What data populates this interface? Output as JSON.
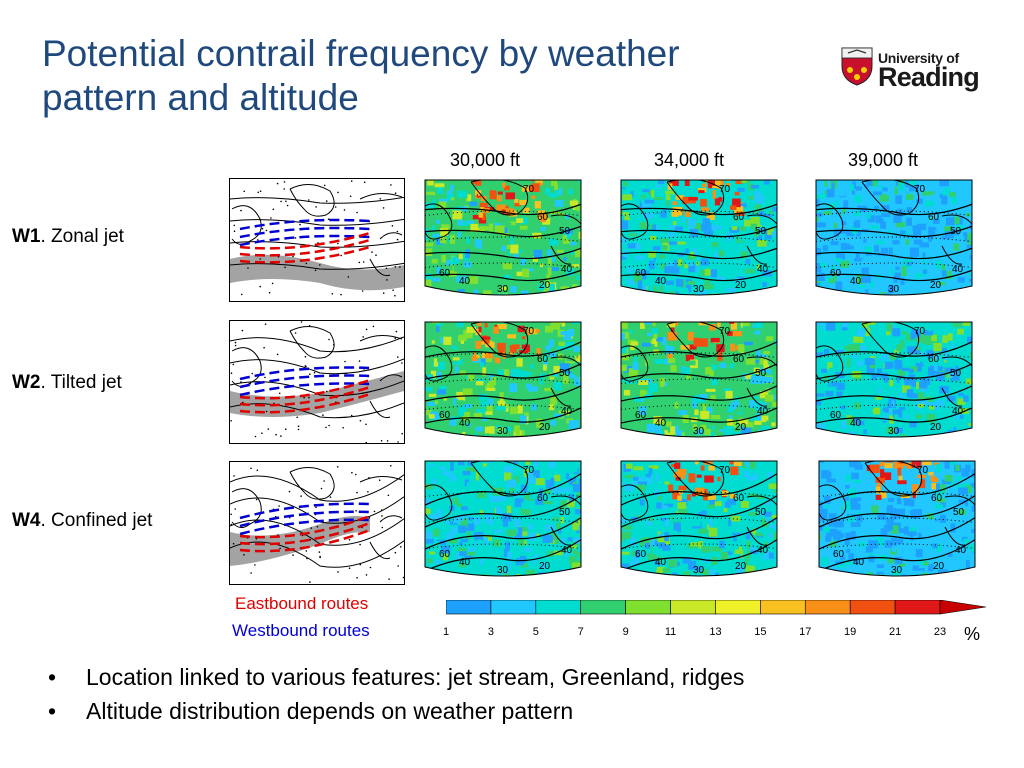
{
  "title": "Potential contrail frequency by weather pattern and altitude",
  "logo": {
    "line1": "University of",
    "line2": "Reading"
  },
  "altitudes": [
    "30,000 ft",
    "34,000 ft",
    "39,000 ft"
  ],
  "rows": [
    {
      "code": "W1",
      "name": ". Zonal jet"
    },
    {
      "code": "W2",
      "name": ".  Tilted jet"
    },
    {
      "code": "W4",
      "name": ". Confined jet"
    }
  ],
  "contour_labels": [
    "70",
    "60",
    "50",
    "40",
    "40",
    "30",
    "20",
    "60"
  ],
  "legend": {
    "eastbound": "Eastbound routes",
    "westbound": "Westbound routes",
    "eastbound_color": "#e00000",
    "westbound_color": "#0000d0"
  },
  "colorbar": {
    "ticks": [
      "1",
      "3",
      "5",
      "7",
      "9",
      "11",
      "13",
      "15",
      "17",
      "19",
      "21",
      "23"
    ],
    "unit": "%",
    "colors": [
      "#1e3cff",
      "#1ea0ff",
      "#20c8ff",
      "#00dcd0",
      "#30d070",
      "#80e030",
      "#c8e828",
      "#f0f028",
      "#f8c020",
      "#f89018",
      "#f05010",
      "#e01818",
      "#c80000"
    ]
  },
  "bullets": [
    "Location linked to various features: jet stream, Greenland, ridges",
    "Altitude distribution depends on weather pattern"
  ]
}
